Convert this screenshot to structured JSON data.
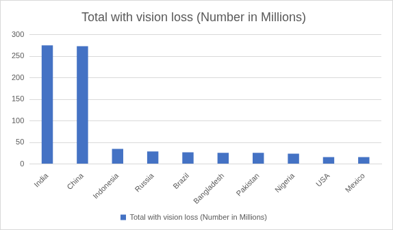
{
  "chart_data": {
    "type": "bar",
    "title": "Total with vision loss (Number in Millions)",
    "categories": [
      "India",
      "China",
      "Indonesia",
      "Russia",
      "Brazil",
      "Bangladesh",
      "Pakistan",
      "Nigeria",
      "USA",
      "Mexico"
    ],
    "series": [
      {
        "name": "Total with vision loss (Number in Millions)",
        "color": "#4472c4",
        "values": [
          275,
          273,
          35,
          29,
          27,
          26,
          26,
          24,
          16,
          16
        ]
      }
    ],
    "ylim": [
      0,
      300
    ],
    "yticks": [
      0,
      50,
      100,
      150,
      200,
      250,
      300
    ],
    "grid": true,
    "legend": "bottom"
  }
}
